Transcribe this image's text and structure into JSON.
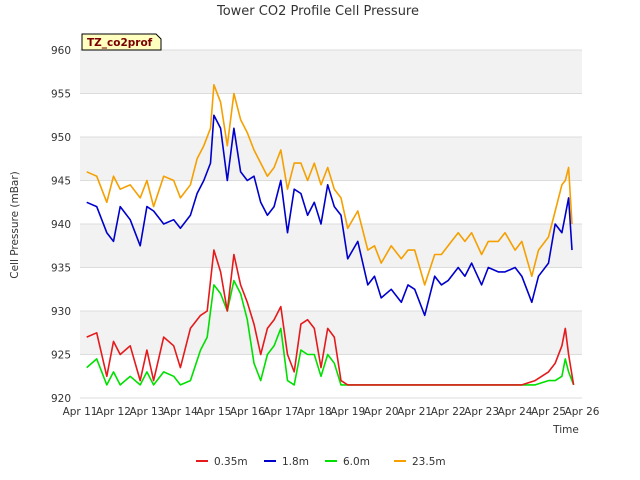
{
  "chart_data": {
    "type": "line",
    "title": "Tower CO2 Profile Cell Pressure",
    "xlabel": "Time",
    "ylabel": "Cell Pressure (mBar)",
    "site_label": "TZ_co2prof",
    "xlim": [
      0,
      15
    ],
    "ylim": [
      920,
      960
    ],
    "x_tick_labels": [
      "Apr 11",
      "Apr 12",
      "Apr 13",
      "Apr 14",
      "Apr 15",
      "Apr 16",
      "Apr 17",
      "Apr 18",
      "Apr 19",
      "Apr 20",
      "Apr 21",
      "Apr 22",
      "Apr 23",
      "Apr 24",
      "Apr 25",
      "Apr 26"
    ],
    "y_ticks": [
      920,
      925,
      930,
      935,
      940,
      945,
      950,
      955,
      960
    ],
    "grid": true,
    "legend_position": "bottom",
    "series": [
      {
        "name": "0.35m",
        "color": "#e41a1c",
        "x": [
          0.2,
          0.5,
          0.8,
          1.0,
          1.2,
          1.5,
          1.8,
          2.0,
          2.2,
          2.5,
          2.8,
          3.0,
          3.3,
          3.6,
          3.8,
          4.0,
          4.2,
          4.4,
          4.6,
          4.8,
          5.0,
          5.2,
          5.4,
          5.6,
          5.8,
          6.0,
          6.2,
          6.4,
          6.6,
          6.8,
          7.0,
          7.2,
          7.4,
          7.6,
          7.8,
          8.0,
          8.3,
          8.6,
          9.0,
          9.3,
          9.6,
          10.0,
          10.4,
          10.8,
          11.2,
          11.6,
          12.0,
          12.4,
          12.8,
          13.2,
          13.6,
          14.0,
          14.2,
          14.4,
          14.5,
          14.6,
          14.75
        ],
        "y": [
          927,
          927.5,
          922.5,
          926.5,
          925,
          926,
          922,
          925.5,
          922,
          927,
          926,
          923.5,
          928,
          929.5,
          930,
          937,
          934.5,
          930,
          936.5,
          933,
          931,
          928.5,
          925,
          928,
          929,
          930.5,
          925,
          923,
          928.5,
          929,
          928,
          923.5,
          928,
          927,
          922,
          921.5,
          921.5,
          921.5,
          921.5,
          921.5,
          921.5,
          921.5,
          921.5,
          921.5,
          921.5,
          921.5,
          921.5,
          921.5,
          921.5,
          921.5,
          922,
          923,
          924,
          926,
          928,
          925,
          921.5
        ]
      },
      {
        "name": "1.8m",
        "color": "#0000cc",
        "x": [
          0.2,
          0.5,
          0.8,
          1.0,
          1.2,
          1.5,
          1.8,
          2.0,
          2.2,
          2.5,
          2.8,
          3.0,
          3.3,
          3.5,
          3.7,
          3.9,
          4.0,
          4.2,
          4.4,
          4.6,
          4.8,
          5.0,
          5.2,
          5.4,
          5.6,
          5.8,
          6.0,
          6.2,
          6.4,
          6.6,
          6.8,
          7.0,
          7.2,
          7.4,
          7.6,
          7.8,
          8.0,
          8.3,
          8.6,
          8.8,
          9.0,
          9.3,
          9.6,
          9.8,
          10.0,
          10.3,
          10.6,
          10.8,
          11.0,
          11.3,
          11.5,
          11.7,
          12.0,
          12.2,
          12.5,
          12.7,
          13.0,
          13.2,
          13.5,
          13.7,
          14.0,
          14.2,
          14.4,
          14.5,
          14.6,
          14.7
        ],
        "y": [
          942.5,
          942,
          939,
          938,
          942,
          940.5,
          937.5,
          942,
          941.5,
          940,
          940.5,
          939.5,
          941,
          943.5,
          945,
          947,
          952.5,
          951,
          945,
          951,
          946,
          945,
          945.5,
          942.5,
          941,
          942,
          945,
          939,
          944,
          943.5,
          941,
          942.5,
          940,
          944.5,
          942,
          941,
          936,
          938,
          933,
          934,
          931.5,
          932.5,
          931,
          933,
          932.5,
          929.5,
          934,
          933,
          933.5,
          935,
          934,
          935.5,
          933,
          935,
          934.5,
          934.5,
          935,
          934,
          931,
          934,
          935.5,
          940,
          939,
          941,
          943,
          937
        ]
      },
      {
        "name": "6.0m",
        "color": "#00e000",
        "x": [
          0.2,
          0.5,
          0.8,
          1.0,
          1.2,
          1.5,
          1.8,
          2.0,
          2.2,
          2.5,
          2.8,
          3.0,
          3.3,
          3.6,
          3.8,
          4.0,
          4.2,
          4.4,
          4.6,
          4.8,
          5.0,
          5.2,
          5.4,
          5.6,
          5.8,
          6.0,
          6.2,
          6.4,
          6.6,
          6.8,
          7.0,
          7.2,
          7.4,
          7.6,
          7.8,
          8.0,
          8.3,
          8.6,
          9.0,
          9.3,
          9.6,
          10.0,
          10.4,
          10.8,
          11.2,
          11.6,
          12.0,
          12.4,
          12.8,
          13.2,
          13.6,
          14.0,
          14.2,
          14.4,
          14.5,
          14.6,
          14.75
        ],
        "y": [
          923.5,
          924.5,
          921.5,
          923,
          921.5,
          922.5,
          921.5,
          923,
          921.5,
          923,
          922.5,
          921.5,
          922,
          925.5,
          927,
          933,
          932,
          930,
          933.5,
          932,
          929,
          924,
          922,
          925,
          926,
          928,
          922,
          921.5,
          925.5,
          925,
          925,
          922.5,
          925,
          924,
          921.5,
          921.5,
          921.5,
          921.5,
          921.5,
          921.5,
          921.5,
          921.5,
          921.5,
          921.5,
          921.5,
          921.5,
          921.5,
          921.5,
          921.5,
          921.5,
          921.5,
          922,
          922,
          922.5,
          924.5,
          923,
          921.5
        ]
      },
      {
        "name": "23.5m",
        "color": "#f5a000",
        "x": [
          0.2,
          0.5,
          0.8,
          1.0,
          1.2,
          1.5,
          1.8,
          2.0,
          2.2,
          2.5,
          2.8,
          3.0,
          3.3,
          3.5,
          3.7,
          3.9,
          4.0,
          4.2,
          4.4,
          4.6,
          4.8,
          5.0,
          5.2,
          5.4,
          5.6,
          5.8,
          6.0,
          6.2,
          6.4,
          6.6,
          6.8,
          7.0,
          7.2,
          7.4,
          7.6,
          7.8,
          8.0,
          8.3,
          8.6,
          8.8,
          9.0,
          9.3,
          9.6,
          9.8,
          10.0,
          10.3,
          10.6,
          10.8,
          11.0,
          11.3,
          11.5,
          11.7,
          12.0,
          12.2,
          12.5,
          12.7,
          13.0,
          13.2,
          13.5,
          13.7,
          14.0,
          14.2,
          14.4,
          14.5,
          14.6,
          14.7
        ],
        "y": [
          946,
          945.5,
          942.5,
          945.5,
          944,
          944.5,
          943,
          945,
          942,
          945.5,
          945,
          943,
          944.5,
          947.5,
          949,
          951,
          956,
          954,
          949,
          955,
          952,
          950.5,
          948.5,
          947,
          945.5,
          946.5,
          948.5,
          944,
          947,
          947,
          945,
          947,
          944.5,
          946.5,
          944,
          943,
          939.5,
          941.5,
          937,
          937.5,
          935.5,
          937.5,
          936,
          937,
          937,
          933,
          936.5,
          936.5,
          937.5,
          939,
          938,
          939,
          936.5,
          938,
          938,
          939,
          937,
          938,
          934,
          937,
          938.5,
          941.5,
          944.5,
          945,
          946.5,
          940
        ]
      }
    ]
  }
}
